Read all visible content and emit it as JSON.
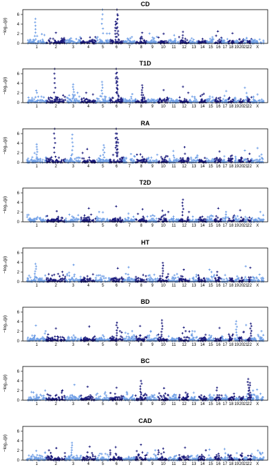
{
  "figure": {
    "y_axis_label": "−log₁₀(p)",
    "colors": {
      "dark": "#17177a",
      "light": "#6e9ee6",
      "frame": "#000000"
    }
  },
  "chart_data": [
    {
      "type": "scatter",
      "title": "CD",
      "ylim": [
        0,
        7
      ],
      "yticks": [
        0,
        2,
        4,
        6
      ],
      "xlabels": [
        "1",
        "2",
        "3",
        "4",
        "5",
        "6",
        "7",
        "8",
        "9",
        "10",
        "11",
        "12",
        "13",
        "14",
        "15",
        "16",
        "17",
        "18",
        "19",
        "20",
        "21",
        "22",
        "X"
      ],
      "peaks": [
        {
          "chr": "1",
          "y": 5.1
        },
        {
          "chr": "5",
          "y": 7.0
        },
        {
          "chr": "6",
          "y": 7.0
        },
        {
          "chr": "6",
          "y": 5.8
        },
        {
          "chr": "6",
          "y": 4.5
        },
        {
          "chr": "2",
          "y": 2.2
        },
        {
          "chr": "8",
          "y": 2.2
        },
        {
          "chr": "12",
          "y": 2.4
        },
        {
          "chr": "16",
          "y": 2.5
        },
        {
          "chr": "10",
          "y": 2.0
        },
        {
          "chr": "18",
          "y": 2.1
        }
      ]
    },
    {
      "type": "scatter",
      "title": "T1D",
      "ylim": [
        0,
        7
      ],
      "yticks": [
        0,
        2,
        4,
        6
      ],
      "xlabels": [
        "1",
        "2",
        "3",
        "4",
        "5",
        "6",
        "7",
        "8",
        "9",
        "10",
        "11",
        "12",
        "13",
        "14",
        "15",
        "16",
        "17",
        "18",
        "19",
        "20",
        "21",
        "22",
        "X"
      ],
      "peaks": [
        {
          "chr": "2",
          "y": 7.0
        },
        {
          "chr": "6",
          "y": 7.0
        },
        {
          "chr": "6",
          "y": 6.2
        },
        {
          "chr": "6",
          "y": 5.0
        },
        {
          "chr": "5",
          "y": 4.3
        },
        {
          "chr": "3",
          "y": 3.8
        },
        {
          "chr": "8",
          "y": 3.6
        },
        {
          "chr": "12",
          "y": 3.3
        },
        {
          "chr": "1",
          "y": 2.5
        },
        {
          "chr": "10",
          "y": 2.6
        },
        {
          "chr": "17",
          "y": 2.4
        },
        {
          "chr": "21",
          "y": 3.1
        },
        {
          "chr": "X",
          "y": 1.7
        }
      ]
    },
    {
      "type": "scatter",
      "title": "RA",
      "ylim": [
        0,
        7
      ],
      "yticks": [
        0,
        2,
        4,
        6
      ],
      "xlabels": [
        "1",
        "2",
        "3",
        "4",
        "5",
        "6",
        "7",
        "8",
        "9",
        "10",
        "11",
        "12",
        "13",
        "14",
        "15",
        "16",
        "17",
        "18",
        "19",
        "20",
        "21",
        "22",
        "X"
      ],
      "peaks": [
        {
          "chr": "2",
          "y": 7.0
        },
        {
          "chr": "6",
          "y": 7.0
        },
        {
          "chr": "6",
          "y": 6.0
        },
        {
          "chr": "6",
          "y": 4.8
        },
        {
          "chr": "3",
          "y": 5.8
        },
        {
          "chr": "1",
          "y": 3.8
        },
        {
          "chr": "5",
          "y": 3.6
        },
        {
          "chr": "4",
          "y": 2.8
        },
        {
          "chr": "11",
          "y": 2.4
        },
        {
          "chr": "12",
          "y": 3.2
        },
        {
          "chr": "16",
          "y": 2.3
        },
        {
          "chr": "21",
          "y": 2.5
        },
        {
          "chr": "X",
          "y": 3.0
        }
      ]
    },
    {
      "type": "scatter",
      "title": "T2D",
      "ylim": [
        0,
        7
      ],
      "yticks": [
        0,
        2,
        4,
        6
      ],
      "xlabels": [
        "1",
        "2",
        "3",
        "4",
        "5",
        "6",
        "7",
        "8",
        "9",
        "10",
        "11",
        "12",
        "13",
        "14",
        "15",
        "16",
        "17",
        "18",
        "19",
        "20",
        "21",
        "22",
        "X"
      ],
      "peaks": [
        {
          "chr": "12",
          "y": 4.6
        },
        {
          "chr": "6",
          "y": 3.2
        },
        {
          "chr": "4",
          "y": 2.8
        },
        {
          "chr": "8",
          "y": 2.6
        },
        {
          "chr": "10",
          "y": 2.3
        },
        {
          "chr": "16",
          "y": 2.8
        },
        {
          "chr": "2",
          "y": 2.2
        },
        {
          "chr": "20",
          "y": 2.4
        }
      ]
    },
    {
      "type": "scatter",
      "title": "HT",
      "ylim": [
        0,
        7
      ],
      "yticks": [
        0,
        2,
        4,
        6
      ],
      "xlabels": [
        "1",
        "2",
        "3",
        "4",
        "5",
        "6",
        "7",
        "8",
        "9",
        "10",
        "11",
        "12",
        "13",
        "14",
        "15",
        "16",
        "17",
        "18",
        "19",
        "20",
        "21",
        "22",
        "X"
      ],
      "peaks": [
        {
          "chr": "1",
          "y": 3.7
        },
        {
          "chr": "10",
          "y": 3.9
        },
        {
          "chr": "3",
          "y": 3.5
        },
        {
          "chr": "6",
          "y": 2.8
        },
        {
          "chr": "7",
          "y": 3.0
        },
        {
          "chr": "21",
          "y": 3.2
        },
        {
          "chr": "22",
          "y": 2.9
        },
        {
          "chr": "15",
          "y": 2.5
        },
        {
          "chr": "12",
          "y": 2.5
        }
      ]
    },
    {
      "type": "scatter",
      "title": "BD",
      "ylim": [
        0,
        7
      ],
      "yticks": [
        0,
        2,
        4,
        6
      ],
      "xlabels": [
        "1",
        "2",
        "3",
        "4",
        "5",
        "6",
        "7",
        "8",
        "9",
        "10",
        "11",
        "12",
        "13",
        "14",
        "15",
        "16",
        "17",
        "18",
        "19",
        "20",
        "21",
        "22",
        "X"
      ],
      "peaks": [
        {
          "chr": "10",
          "y": 4.3
        },
        {
          "chr": "19",
          "y": 4.1
        },
        {
          "chr": "6",
          "y": 3.8
        },
        {
          "chr": "22",
          "y": 3.6
        },
        {
          "chr": "1",
          "y": 3.2
        },
        {
          "chr": "2",
          "y": 2.6
        },
        {
          "chr": "4",
          "y": 3.0
        },
        {
          "chr": "8",
          "y": 3.1
        },
        {
          "chr": "12",
          "y": 2.8
        },
        {
          "chr": "21",
          "y": 3.3
        },
        {
          "chr": "16",
          "y": 2.7
        }
      ]
    },
    {
      "type": "scatter",
      "title": "BC",
      "ylim": [
        0,
        7
      ],
      "yticks": [
        0,
        2,
        4,
        6
      ],
      "xlabels": [
        "1",
        "2",
        "3",
        "4",
        "5",
        "6",
        "7",
        "8",
        "9",
        "10",
        "11",
        "12",
        "13",
        "14",
        "15",
        "16",
        "17",
        "18",
        "19",
        "20",
        "21",
        "22",
        "X"
      ],
      "peaks": [
        {
          "chr": "22",
          "y": 4.4
        },
        {
          "chr": "8",
          "y": 4.0
        },
        {
          "chr": "22",
          "y": 3.6
        },
        {
          "chr": "3",
          "y": 3.2
        },
        {
          "chr": "4",
          "y": 2.8
        },
        {
          "chr": "6",
          "y": 2.6
        },
        {
          "chr": "10",
          "y": 2.5
        },
        {
          "chr": "16",
          "y": 2.6
        },
        {
          "chr": "X",
          "y": 2.2
        }
      ]
    },
    {
      "type": "scatter",
      "title": "CAD",
      "ylim": [
        0,
        7
      ],
      "yticks": [
        0,
        2,
        4,
        6
      ],
      "xlabels": [
        "1",
        "2",
        "3",
        "4",
        "5",
        "6",
        "7",
        "8",
        "9",
        "10",
        "11",
        "12",
        "13",
        "14",
        "15",
        "16",
        "17",
        "18",
        "19",
        "20",
        "21",
        "22",
        "X"
      ],
      "peaks": [
        {
          "chr": "3",
          "y": 3.6
        },
        {
          "chr": "8",
          "y": 3.2
        },
        {
          "chr": "2",
          "y": 2.5
        },
        {
          "chr": "4",
          "y": 2.8
        },
        {
          "chr": "6",
          "y": 2.7
        },
        {
          "chr": "10",
          "y": 2.4
        },
        {
          "chr": "12",
          "y": 2.6
        },
        {
          "chr": "15",
          "y": 2.2
        },
        {
          "chr": "17",
          "y": 2.3
        },
        {
          "chr": "X",
          "y": 2.0
        }
      ]
    }
  ]
}
